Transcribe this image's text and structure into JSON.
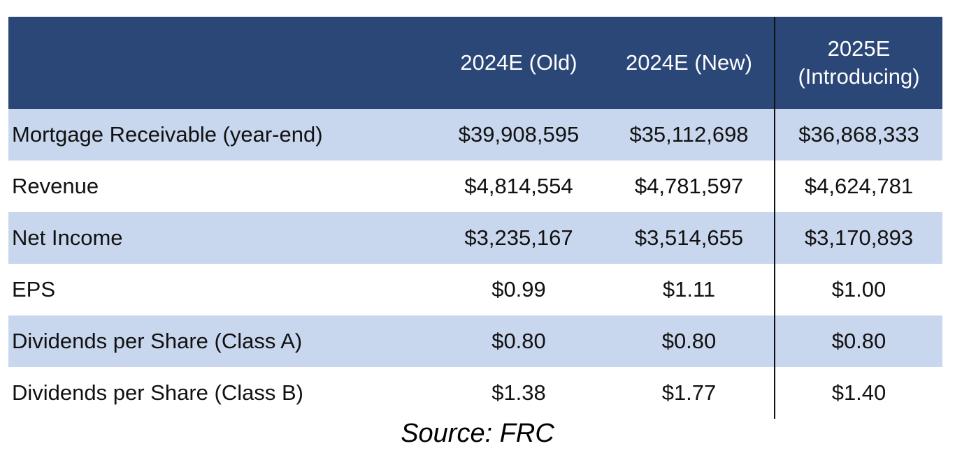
{
  "chart_data": {
    "type": "table",
    "columns": [
      "",
      "2024E (Old)",
      "2024E (New)",
      "2025E\n(Introducing)"
    ],
    "rows": [
      {
        "label": "Mortgage Receivable (year-end)",
        "values": [
          "$39,908,595",
          "$35,112,698",
          "$36,868,333"
        ]
      },
      {
        "label": "Revenue",
        "values": [
          "$4,814,554",
          "$4,781,597",
          "$4,624,781"
        ]
      },
      {
        "label": "Net Income",
        "values": [
          "$3,235,167",
          "$3,514,655",
          "$3,170,893"
        ]
      },
      {
        "label": "EPS",
        "values": [
          "$0.99",
          "$1.11",
          "$1.00"
        ]
      },
      {
        "label": "Dividends per Share (Class A)",
        "values": [
          "$0.80",
          "$0.80",
          "$0.80"
        ]
      },
      {
        "label": "Dividends per Share (Class B)",
        "values": [
          "$1.38",
          "$1.77",
          "$1.40"
        ]
      }
    ]
  },
  "header": {
    "col1": "2024E (Old)",
    "col2": "2024E (New)",
    "col3_line1": "2025E",
    "col3_line2": "(Introducing)"
  },
  "source": "Source: FRC",
  "colors": {
    "header_bg": "#2b4778",
    "band_bg": "#c9d7ee",
    "header_text": "#ffffff"
  }
}
